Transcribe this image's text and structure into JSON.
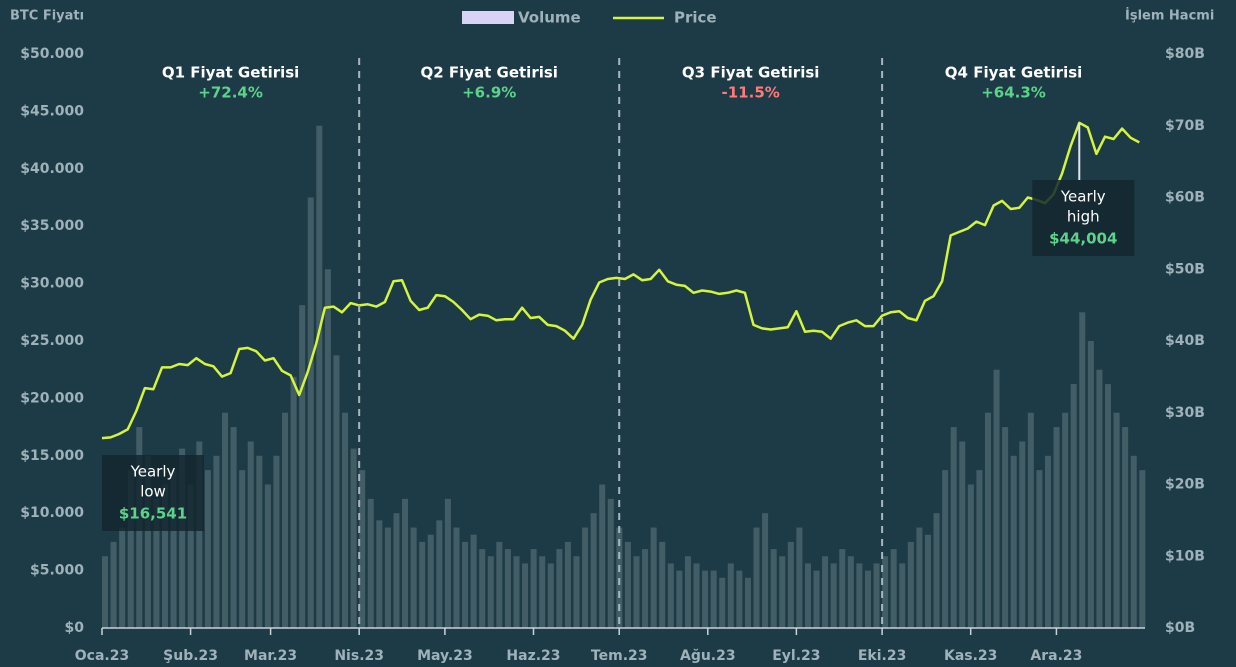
{
  "chart_data": {
    "type": "bar-line",
    "y_axis_title": "BTC Fiyatı",
    "y2_axis_title": "İşlem Hacmi",
    "xlim": [
      0,
      365
    ],
    "xticks": [
      {
        "value": 0,
        "label": "Oca.23"
      },
      {
        "value": 31,
        "label": "Şub.23"
      },
      {
        "value": 59,
        "label": "Mar.23"
      },
      {
        "value": 90,
        "label": "Nis.23"
      },
      {
        "value": 120,
        "label": "May.23"
      },
      {
        "value": 151,
        "label": "Haz.23"
      },
      {
        "value": 181,
        "label": "Tem.23"
      },
      {
        "value": 212,
        "label": "Ağu.23"
      },
      {
        "value": 243,
        "label": "Eyl.23"
      },
      {
        "value": 273,
        "label": "Eki.23"
      },
      {
        "value": 304,
        "label": "Kas.23"
      },
      {
        "value": 334,
        "label": "Ara.23"
      }
    ],
    "ylim": [
      0,
      50000
    ],
    "yticks": [
      {
        "value": 0,
        "label": "$0"
      },
      {
        "value": 5000,
        "label": "$5.000"
      },
      {
        "value": 10000,
        "label": "$10.000"
      },
      {
        "value": 15000,
        "label": "$15.000"
      },
      {
        "value": 20000,
        "label": "$20.000"
      },
      {
        "value": 25000,
        "label": "$25.000"
      },
      {
        "value": 30000,
        "label": "$30.000"
      },
      {
        "value": 35000,
        "label": "$35.000"
      },
      {
        "value": 40000,
        "label": "$40.000"
      },
      {
        "value": 45000,
        "label": "$45.000"
      },
      {
        "value": 50000,
        "label": "$50.000"
      }
    ],
    "y2lim": [
      0,
      80
    ],
    "y2ticks": [
      {
        "value": 0,
        "label": "$0B"
      },
      {
        "value": 10,
        "label": "$10B"
      },
      {
        "value": 20,
        "label": "$20B"
      },
      {
        "value": 30,
        "label": "$30B"
      },
      {
        "value": 40,
        "label": "$40B"
      },
      {
        "value": 50,
        "label": "$50B"
      },
      {
        "value": 60,
        "label": "$60B"
      },
      {
        "value": 70,
        "label": "$70B"
      },
      {
        "value": 80,
        "label": "$80B"
      }
    ],
    "x": [
      0,
      3,
      6,
      9,
      12,
      15,
      18,
      21,
      24,
      27,
      30,
      33,
      36,
      39,
      42,
      45,
      48,
      51,
      54,
      57,
      60,
      63,
      66,
      69,
      72,
      75,
      78,
      81,
      84,
      87,
      90,
      93,
      96,
      99,
      102,
      105,
      108,
      111,
      114,
      117,
      120,
      123,
      126,
      129,
      132,
      135,
      138,
      141,
      144,
      147,
      150,
      153,
      156,
      159,
      162,
      165,
      168,
      171,
      174,
      177,
      180,
      183,
      186,
      189,
      192,
      195,
      198,
      201,
      204,
      207,
      210,
      213,
      216,
      219,
      222,
      225,
      228,
      231,
      234,
      237,
      240,
      243,
      246,
      249,
      252,
      255,
      258,
      261,
      264,
      267,
      270,
      273,
      276,
      279,
      282,
      285,
      288,
      291,
      294,
      297,
      300,
      303,
      306,
      309,
      312,
      315,
      318,
      321,
      324,
      327,
      330,
      333,
      336,
      339,
      342,
      345,
      348,
      351,
      354,
      357,
      360,
      363
    ],
    "series": [
      {
        "name": "Volume",
        "color": "#d9d4f5",
        "bar_color": "#8d9ea6",
        "axis": "y2",
        "values": [
          10,
          12,
          14,
          22,
          28,
          24,
          18,
          20,
          22,
          25,
          20,
          26,
          22,
          24,
          30,
          28,
          22,
          26,
          24,
          20,
          24,
          30,
          35,
          45,
          60,
          70,
          50,
          38,
          30,
          25,
          22,
          18,
          15,
          14,
          16,
          18,
          14,
          12,
          13,
          15,
          18,
          14,
          12,
          13,
          11,
          10,
          12,
          11,
          10,
          9,
          11,
          10,
          9,
          11,
          12,
          10,
          14,
          16,
          20,
          18,
          14,
          12,
          10,
          11,
          14,
          12,
          9,
          8,
          10,
          9,
          8,
          8,
          7,
          9,
          8,
          7,
          14,
          16,
          11,
          10,
          12,
          14,
          9,
          8,
          10,
          9,
          11,
          10,
          9,
          8,
          9,
          10,
          11,
          9,
          12,
          14,
          13,
          16,
          22,
          28,
          26,
          20,
          22,
          30,
          36,
          28,
          24,
          26,
          30,
          22,
          24,
          28,
          30,
          34,
          44,
          40,
          36,
          34,
          30,
          28,
          24,
          22
        ]
      },
      {
        "name": "Price",
        "color": "#d4f53c",
        "axis": "y",
        "values": [
          16541,
          16600,
          16900,
          17300,
          18900,
          20900,
          20800,
          22700,
          22700,
          23000,
          22900,
          23500,
          23000,
          22800,
          21900,
          22200,
          24300,
          24400,
          24100,
          23300,
          23500,
          22400,
          22000,
          20300,
          22300,
          24800,
          27900,
          28000,
          27500,
          28300,
          28100,
          28200,
          28000,
          28400,
          30200,
          30300,
          28500,
          27700,
          27900,
          29000,
          28900,
          28400,
          27700,
          26900,
          27300,
          27200,
          26800,
          26900,
          26900,
          27900,
          27000,
          27100,
          26400,
          26300,
          25900,
          25200,
          26400,
          28600,
          30100,
          30400,
          30500,
          30400,
          30800,
          30300,
          30400,
          31200,
          30200,
          29900,
          29800,
          29200,
          29400,
          29300,
          29100,
          29200,
          29400,
          29200,
          26400,
          26100,
          26000,
          26100,
          26200,
          27600,
          25800,
          25900,
          25800,
          25200,
          26300,
          26600,
          26800,
          26300,
          26300,
          27200,
          27500,
          27600,
          27000,
          26800,
          28500,
          28900,
          30200,
          34200,
          34500,
          34800,
          35400,
          35100,
          36800,
          37200,
          36500,
          36600,
          37500,
          37300,
          37000,
          37800,
          39600,
          42000,
          44004,
          43600,
          41300,
          42800,
          42600,
          43500,
          42700,
          42300
        ]
      }
    ],
    "quarters": [
      {
        "title": "Q1 Fiyat Getirisi",
        "return_label": "+72.4%",
        "color": "#5dd28a"
      },
      {
        "title": "Q2 Fiyat Getirisi",
        "return_label": "+6.9%",
        "color": "#5dd28a"
      },
      {
        "title": "Q3 Fiyat Getirisi",
        "return_label": "-11.5%",
        "color": "#ff7a7a"
      },
      {
        "title": "Q4 Fiyat Getirisi",
        "return_label": "+64.3%",
        "color": "#5dd28a"
      }
    ],
    "annotations": [
      {
        "text": [
          "Yearly",
          "low"
        ],
        "value": 16541,
        "value_label": "$16,541",
        "x": 0
      },
      {
        "text": [
          "Yearly",
          "high"
        ],
        "value": 44004,
        "value_label": "$44,004",
        "x": 342
      }
    ]
  }
}
